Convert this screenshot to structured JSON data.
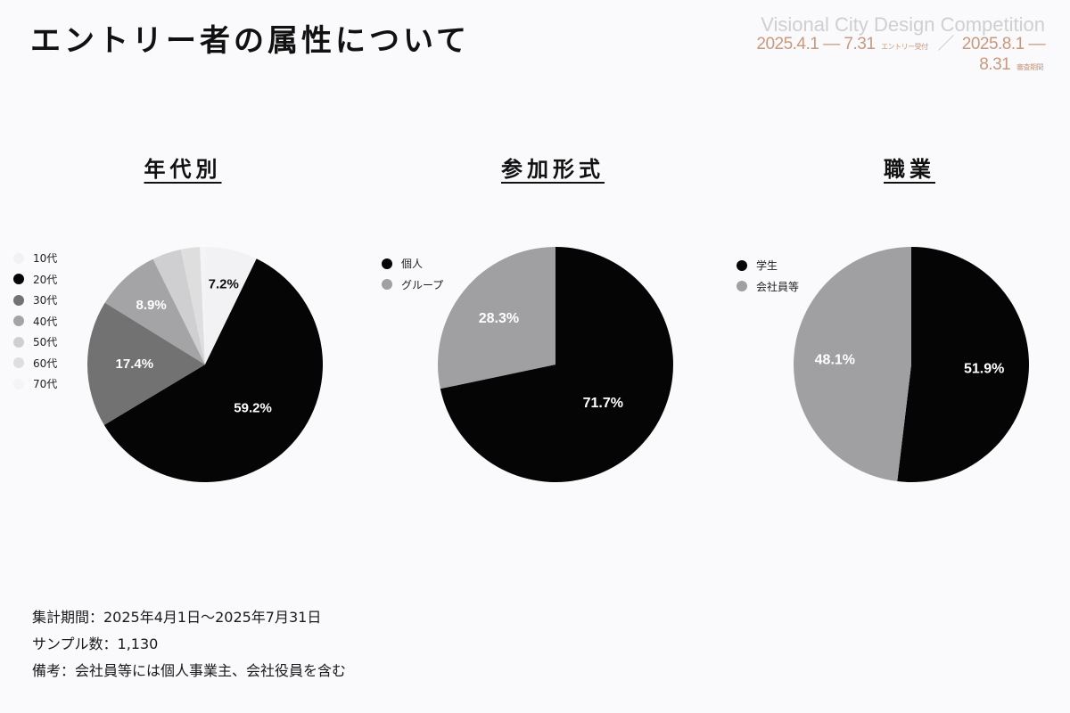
{
  "header": {
    "title": "エントリー者の属性について"
  },
  "brand": {
    "name": "Visional City Design Competition",
    "entry_dates": "2025.4.1 — 7.31",
    "entry_sub": "エントリー受付",
    "separator": "／",
    "review_dates": "2025.8.1 — 8.31",
    "review_sub": "審査期間"
  },
  "chart_data": [
    {
      "type": "pie",
      "title": "年代別",
      "categories": [
        "10代",
        "20代",
        "30代",
        "40代",
        "50代",
        "60代",
        "70代"
      ],
      "values": [
        7.2,
        59.2,
        17.4,
        8.9,
        4.0,
        2.6,
        0.7
      ],
      "data_labels": [
        "7.2%",
        "59.2%",
        "17.4%",
        "8.9%",
        "",
        "",
        ""
      ],
      "colors": [
        "#f2f2f4",
        "#050505",
        "#727272",
        "#a4a4a6",
        "#cfcfd2",
        "#dededf",
        "#f4f4f6"
      ],
      "label_colors": [
        "#111111",
        "#ffffff",
        "#ffffff",
        "#ffffff",
        "#111111",
        "#111111",
        "#111111"
      ],
      "legend_position": "left"
    },
    {
      "type": "pie",
      "title": "参加形式",
      "categories": [
        "個人",
        "グループ"
      ],
      "values": [
        71.7,
        28.3
      ],
      "data_labels": [
        "71.7%",
        "28.3%"
      ],
      "colors": [
        "#050505",
        "#a09fa1"
      ],
      "label_colors": [
        "#ffffff",
        "#ffffff"
      ],
      "legend_position": "top-left"
    },
    {
      "type": "pie",
      "title": "職業",
      "categories": [
        "学生",
        "会社員等"
      ],
      "values": [
        51.9,
        48.1
      ],
      "data_labels": [
        "51.9%",
        "48.1%"
      ],
      "colors": [
        "#050505",
        "#a09fa1"
      ],
      "label_colors": [
        "#ffffff",
        "#ffffff"
      ],
      "legend_position": "top-left"
    }
  ],
  "notes": {
    "period": "集計期間：2025年4月1日〜2025年7月31日",
    "sample": "サンプル数：1,130",
    "remarks": "備考：会社員等には個人事業主、会社役員を含む"
  }
}
